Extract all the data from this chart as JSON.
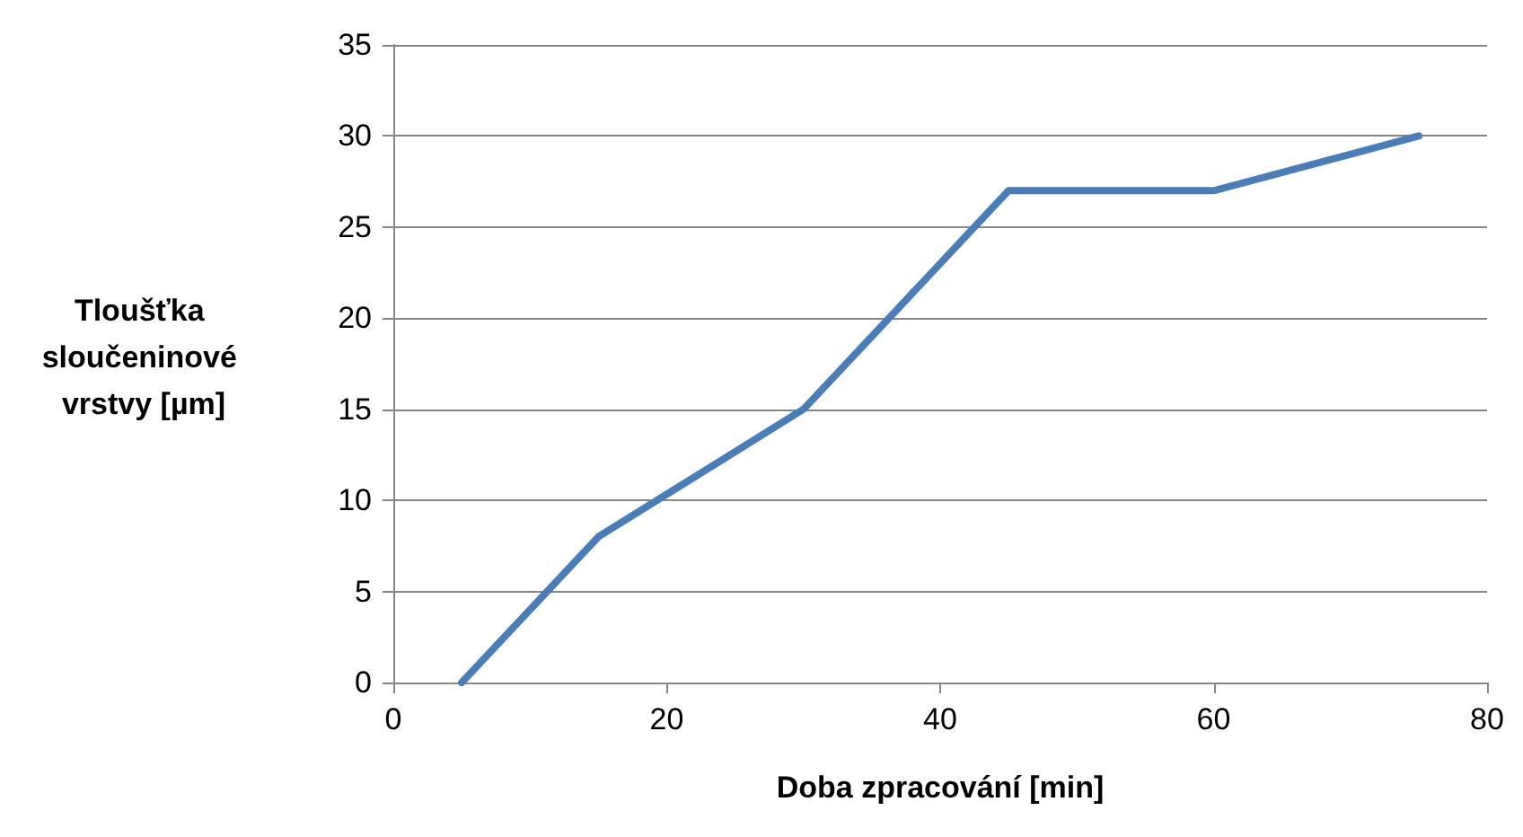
{
  "chart_data": {
    "type": "line",
    "xlabel": "Doba zpracování [min]",
    "ylabel": "Tloušťka sloučeninové vrstvy [µm]",
    "x": [
      5,
      15,
      30,
      45,
      60,
      75
    ],
    "series": [
      {
        "color": "#4a7ebb",
        "values": [
          0,
          8,
          15,
          27,
          27,
          30
        ]
      }
    ],
    "xlim": [
      0,
      80
    ],
    "xticks": [
      0,
      20,
      40,
      60,
      80
    ],
    "ylim": [
      0,
      35
    ],
    "yticks": [
      0,
      5,
      10,
      15,
      20,
      25,
      30,
      35
    ],
    "grid": "y",
    "marker": "none",
    "line_style": "solid"
  }
}
